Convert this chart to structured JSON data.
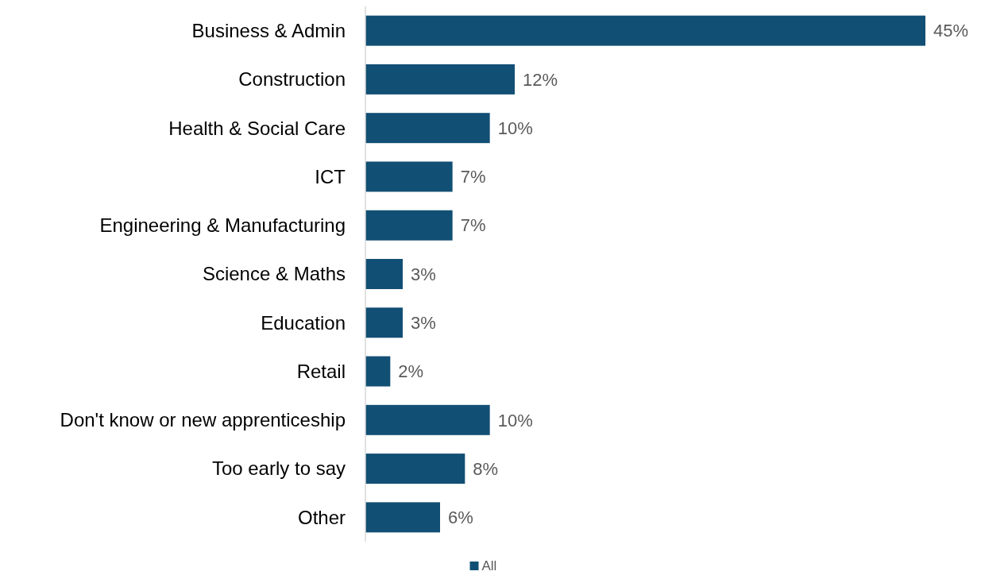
{
  "chart_data": {
    "type": "bar",
    "orientation": "horizontal",
    "categories": [
      "Business & Admin",
      "Construction",
      "Health & Social Care",
      "ICT",
      "Engineering & Manufacturing",
      "Science & Maths",
      "Education",
      "Retail",
      "Don't know or new apprenticeship",
      "Too early to say",
      "Other"
    ],
    "series": [
      {
        "name": "All",
        "color": "#124f74",
        "values": [
          45,
          12,
          10,
          7,
          7,
          3,
          3,
          2,
          10,
          8,
          6
        ],
        "value_labels": [
          "45%",
          "12%",
          "10%",
          "7%",
          "7%",
          "3%",
          "3%",
          "2%",
          "10%",
          "8%",
          "6%"
        ]
      }
    ],
    "legend": "bottom"
  }
}
